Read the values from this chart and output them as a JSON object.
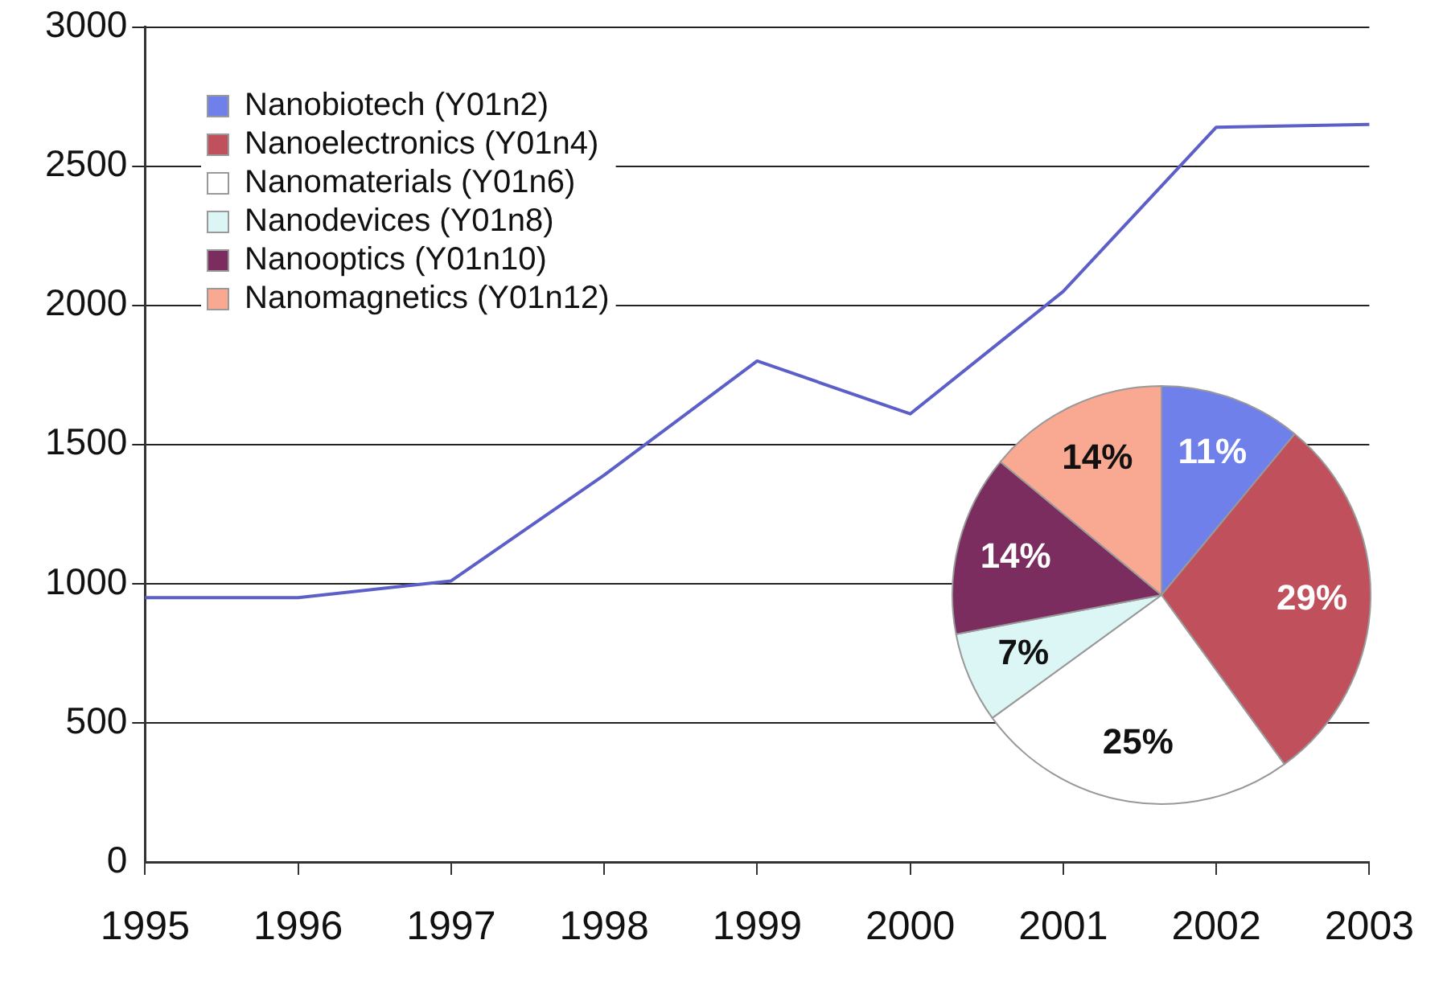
{
  "chart_data": [
    {
      "type": "line",
      "categories": [
        "1995",
        "1996",
        "1997",
        "1998",
        "1999",
        "2000",
        "2001",
        "2002",
        "2003"
      ],
      "series": [
        {
          "color": "#5b5fc7",
          "values": [
            950,
            950,
            1010,
            1390,
            1800,
            1610,
            2050,
            2640,
            2650
          ]
        }
      ],
      "ylim": [
        0,
        3000
      ],
      "yticks": [
        0,
        500,
        1000,
        1500,
        2000,
        2500,
        3000
      ],
      "grid": "y",
      "marker": "none",
      "line_style": "solid",
      "legend": false
    },
    {
      "type": "pie",
      "categories": [
        "Nanobiotech (Y01n2)",
        "Nanoelectronics (Y01n4)",
        "Nanomaterials (Y01n6)",
        "Nanodevices (Y01n8)",
        "Nanooptics (Y01n10)",
        "Nanomagnetics (Y01n12)"
      ],
      "values": [
        11,
        29,
        25,
        7,
        14,
        14
      ],
      "colors": [
        "#6f80ea",
        "#c0505c",
        "#ffffff",
        "#dcf6f6",
        "#7a2d5e",
        "#f9a892"
      ],
      "value_labels": [
        "11%",
        "29%",
        "25%",
        "7%",
        "14%",
        "14%"
      ],
      "legend": "top left"
    }
  ]
}
